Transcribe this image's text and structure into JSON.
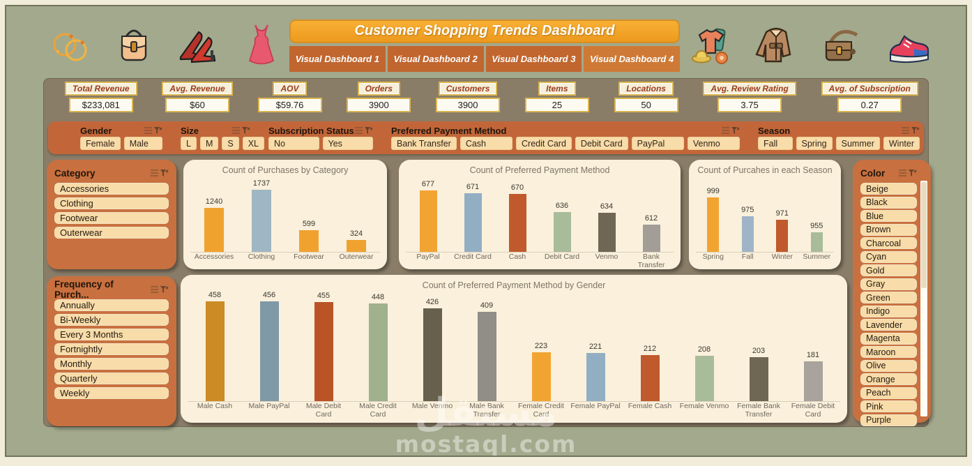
{
  "header": {
    "title": "Customer Shopping Trends Dashboard",
    "tabs": [
      {
        "label": "Visual Dashboard 1"
      },
      {
        "label": "Visual Dashboard 2"
      },
      {
        "label": "Visual Dashboard 3"
      },
      {
        "label": "Visual Dashboard 4"
      }
    ],
    "active_tab": "Visual Dashboard 4",
    "left_icons": [
      "rings-icon",
      "handbag-icon",
      "heels-icon",
      "dress-icon"
    ],
    "right_icons": [
      "clothes-icon",
      "jacket-icon",
      "satchel-icon",
      "sneaker-icon"
    ]
  },
  "kpis": [
    {
      "label": "Total Revenue",
      "value": "$233,081"
    },
    {
      "label": "Avg. Revenue",
      "value": "$60"
    },
    {
      "label": "AOV",
      "value": "$59.76"
    },
    {
      "label": "Orders",
      "value": "3900"
    },
    {
      "label": "Customers",
      "value": "3900"
    },
    {
      "label": "Items",
      "value": "25"
    },
    {
      "label": "Locations",
      "value": "50"
    },
    {
      "label": "Avg.  Review Rating",
      "value": "3.75"
    },
    {
      "label": "Avg. of Subscription",
      "value": "0.27"
    }
  ],
  "slicer_bar": [
    {
      "title": "Gender",
      "items": [
        "Female",
        "Male"
      ]
    },
    {
      "title": "Size",
      "items": [
        "L",
        "M",
        "S",
        "XL"
      ]
    },
    {
      "title": "Subscription Status",
      "items": [
        "No",
        "Yes"
      ]
    },
    {
      "title": "Preferred Payment Method",
      "items": [
        "Bank Transfer",
        "Cash",
        "Credit Card",
        "Debit Card",
        "PayPal",
        "Venmo"
      ]
    },
    {
      "title": "Season",
      "items": [
        "Fall",
        "Spring",
        "Summer",
        "Winter"
      ]
    }
  ],
  "side_slicers": {
    "category": {
      "title": "Category",
      "items": [
        "Accessories",
        "Clothing",
        "Footwear",
        "Outerwear"
      ]
    },
    "frequency": {
      "title": "Frequency of Purch...",
      "items": [
        "Annually",
        "Bi-Weekly",
        "Every 3 Months",
        "Fortnightly",
        "Monthly",
        "Quarterly",
        "Weekly"
      ]
    },
    "color": {
      "title": "Color",
      "items": [
        "Beige",
        "Black",
        "Blue",
        "Brown",
        "Charcoal",
        "Cyan",
        "Gold",
        "Gray",
        "Green",
        "Indigo",
        "Lavender",
        "Magenta",
        "Maroon",
        "Olive",
        "Orange",
        "Peach",
        "Pink",
        "Purple"
      ]
    }
  },
  "chart_data": [
    {
      "type": "bar",
      "title": "Count of Purchases by Category",
      "categories": [
        "Accessories",
        "Clothing",
        "Footwear",
        "Outerwear"
      ],
      "values": [
        1240,
        1737,
        599,
        324
      ],
      "colors": [
        "#F0A22F",
        "#9FB6C3",
        "#F0A22F",
        "#F0A22F"
      ],
      "ylim": [
        0,
        1800
      ],
      "xlabel": "",
      "ylabel": "",
      "grid": false,
      "legend": "none"
    },
    {
      "type": "bar",
      "title": "Count of Preferred Payment Method",
      "categories": [
        "PayPal",
        "Credit Card",
        "Cash",
        "Debit Card",
        "Venmo",
        "Bank Transfer"
      ],
      "values": [
        677,
        671,
        670,
        636,
        634,
        612
      ],
      "colors": [
        "#F2A433",
        "#92AEC2",
        "#C05A2C",
        "#A9BC9A",
        "#6F6753",
        "#A29D96"
      ],
      "ylim": [
        560,
        690
      ],
      "xlabel": "",
      "ylabel": "",
      "grid": false,
      "legend": "none"
    },
    {
      "type": "bar",
      "title": "Count of  Purcahes in each Season",
      "categories": [
        "Spring",
        "Fall",
        "Winter",
        "Summer"
      ],
      "values": [
        999,
        975,
        971,
        955
      ],
      "colors": [
        "#F2A433",
        "#9FB4C6",
        "#C05A2C",
        "#A9BC9A"
      ],
      "ylim": [
        930,
        1010
      ],
      "xlabel": "",
      "ylabel": "",
      "grid": false,
      "legend": "none"
    },
    {
      "type": "bar",
      "title": "Count of Preferred Payment Method by Gender",
      "categories": [
        "Male Cash",
        "Male PayPal",
        "Male Debit Card",
        "Male Credit Card",
        "Male Venmo",
        "Male Bank Transfer",
        "Female Credit Card",
        "Female PayPal",
        "Female Cash",
        "Female Venmo",
        "Female Bank Transfer",
        "Female Debit Card"
      ],
      "values": [
        458,
        456,
        455,
        448,
        426,
        409,
        223,
        221,
        212,
        208,
        203,
        181
      ],
      "colors": [
        "#CC8B24",
        "#7F99A6",
        "#BA5427",
        "#9FB18D",
        "#67604C",
        "#918D87",
        "#F2A433",
        "#92AEC2",
        "#C05A2C",
        "#A9BC9A",
        "#6F6753",
        "#A8A39C"
      ],
      "ylim": [
        0,
        480
      ],
      "xlabel": "",
      "ylabel": "",
      "grid": false,
      "legend": "none"
    }
  ],
  "watermark": {
    "arabic": "مستقل",
    "latin": "mostaql.com"
  },
  "theme": {
    "page_border": "#F2ECDB",
    "background_green": "#A3A98C",
    "panel_brown": "#8A7D68",
    "slicer_orange": "#C8703F",
    "slicer_button_cream": "#F8DCA9",
    "card_cream": "#FAF0DC",
    "kpi_gold_border": "#DCB64F",
    "kpi_label_text": "#9A3C1C",
    "title_orange": "#F2A12B",
    "tab_orange": "#C1662F"
  }
}
